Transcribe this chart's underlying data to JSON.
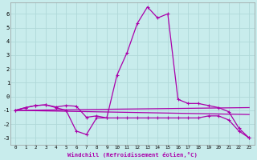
{
  "xlabel": "Windchill (Refroidissement éolien,°C)",
  "background_color": "#c8ecec",
  "grid_color": "#b0d8d8",
  "line_color": "#aa00aa",
  "xlim": [
    -0.5,
    23.5
  ],
  "ylim": [
    -3.5,
    6.8
  ],
  "xticks": [
    0,
    1,
    2,
    3,
    4,
    5,
    6,
    7,
    8,
    9,
    10,
    11,
    12,
    13,
    14,
    15,
    16,
    17,
    18,
    19,
    20,
    21,
    22,
    23
  ],
  "yticks": [
    -3,
    -2,
    -1,
    0,
    1,
    2,
    3,
    4,
    5,
    6
  ],
  "curve1_x": [
    0,
    1,
    2,
    3,
    4,
    5,
    6,
    7,
    8,
    9,
    10,
    11,
    12,
    13,
    14,
    15,
    16,
    17,
    18,
    19,
    20,
    21,
    22,
    23
  ],
  "curve1_y": [
    -1.0,
    -0.8,
    -0.65,
    -0.6,
    -0.75,
    -0.65,
    -0.7,
    -1.5,
    -1.4,
    -1.55,
    1.55,
    3.2,
    5.3,
    6.5,
    5.7,
    6.0,
    -0.2,
    -0.5,
    -0.5,
    -0.65,
    -0.8,
    -1.1,
    -2.3,
    -3.0
  ],
  "curve2_x": [
    0,
    1,
    2,
    3,
    4,
    5,
    6,
    7,
    8,
    9,
    10,
    11,
    12,
    13,
    14,
    15,
    16,
    17,
    18,
    19,
    20,
    21,
    22,
    23
  ],
  "curve2_y": [
    -1.0,
    -0.8,
    -0.65,
    -0.6,
    -0.8,
    -1.0,
    -2.5,
    -2.75,
    -1.55,
    -1.55,
    -1.55,
    -1.55,
    -1.55,
    -1.55,
    -1.55,
    -1.55,
    -1.55,
    -1.55,
    -1.55,
    -1.4,
    -1.4,
    -1.7,
    -2.5,
    -3.0
  ],
  "curve3_x": [
    0,
    23
  ],
  "curve3_y": [
    -1.0,
    -0.8
  ],
  "curve4_x": [
    0,
    23
  ],
  "curve4_y": [
    -1.0,
    -1.3
  ]
}
